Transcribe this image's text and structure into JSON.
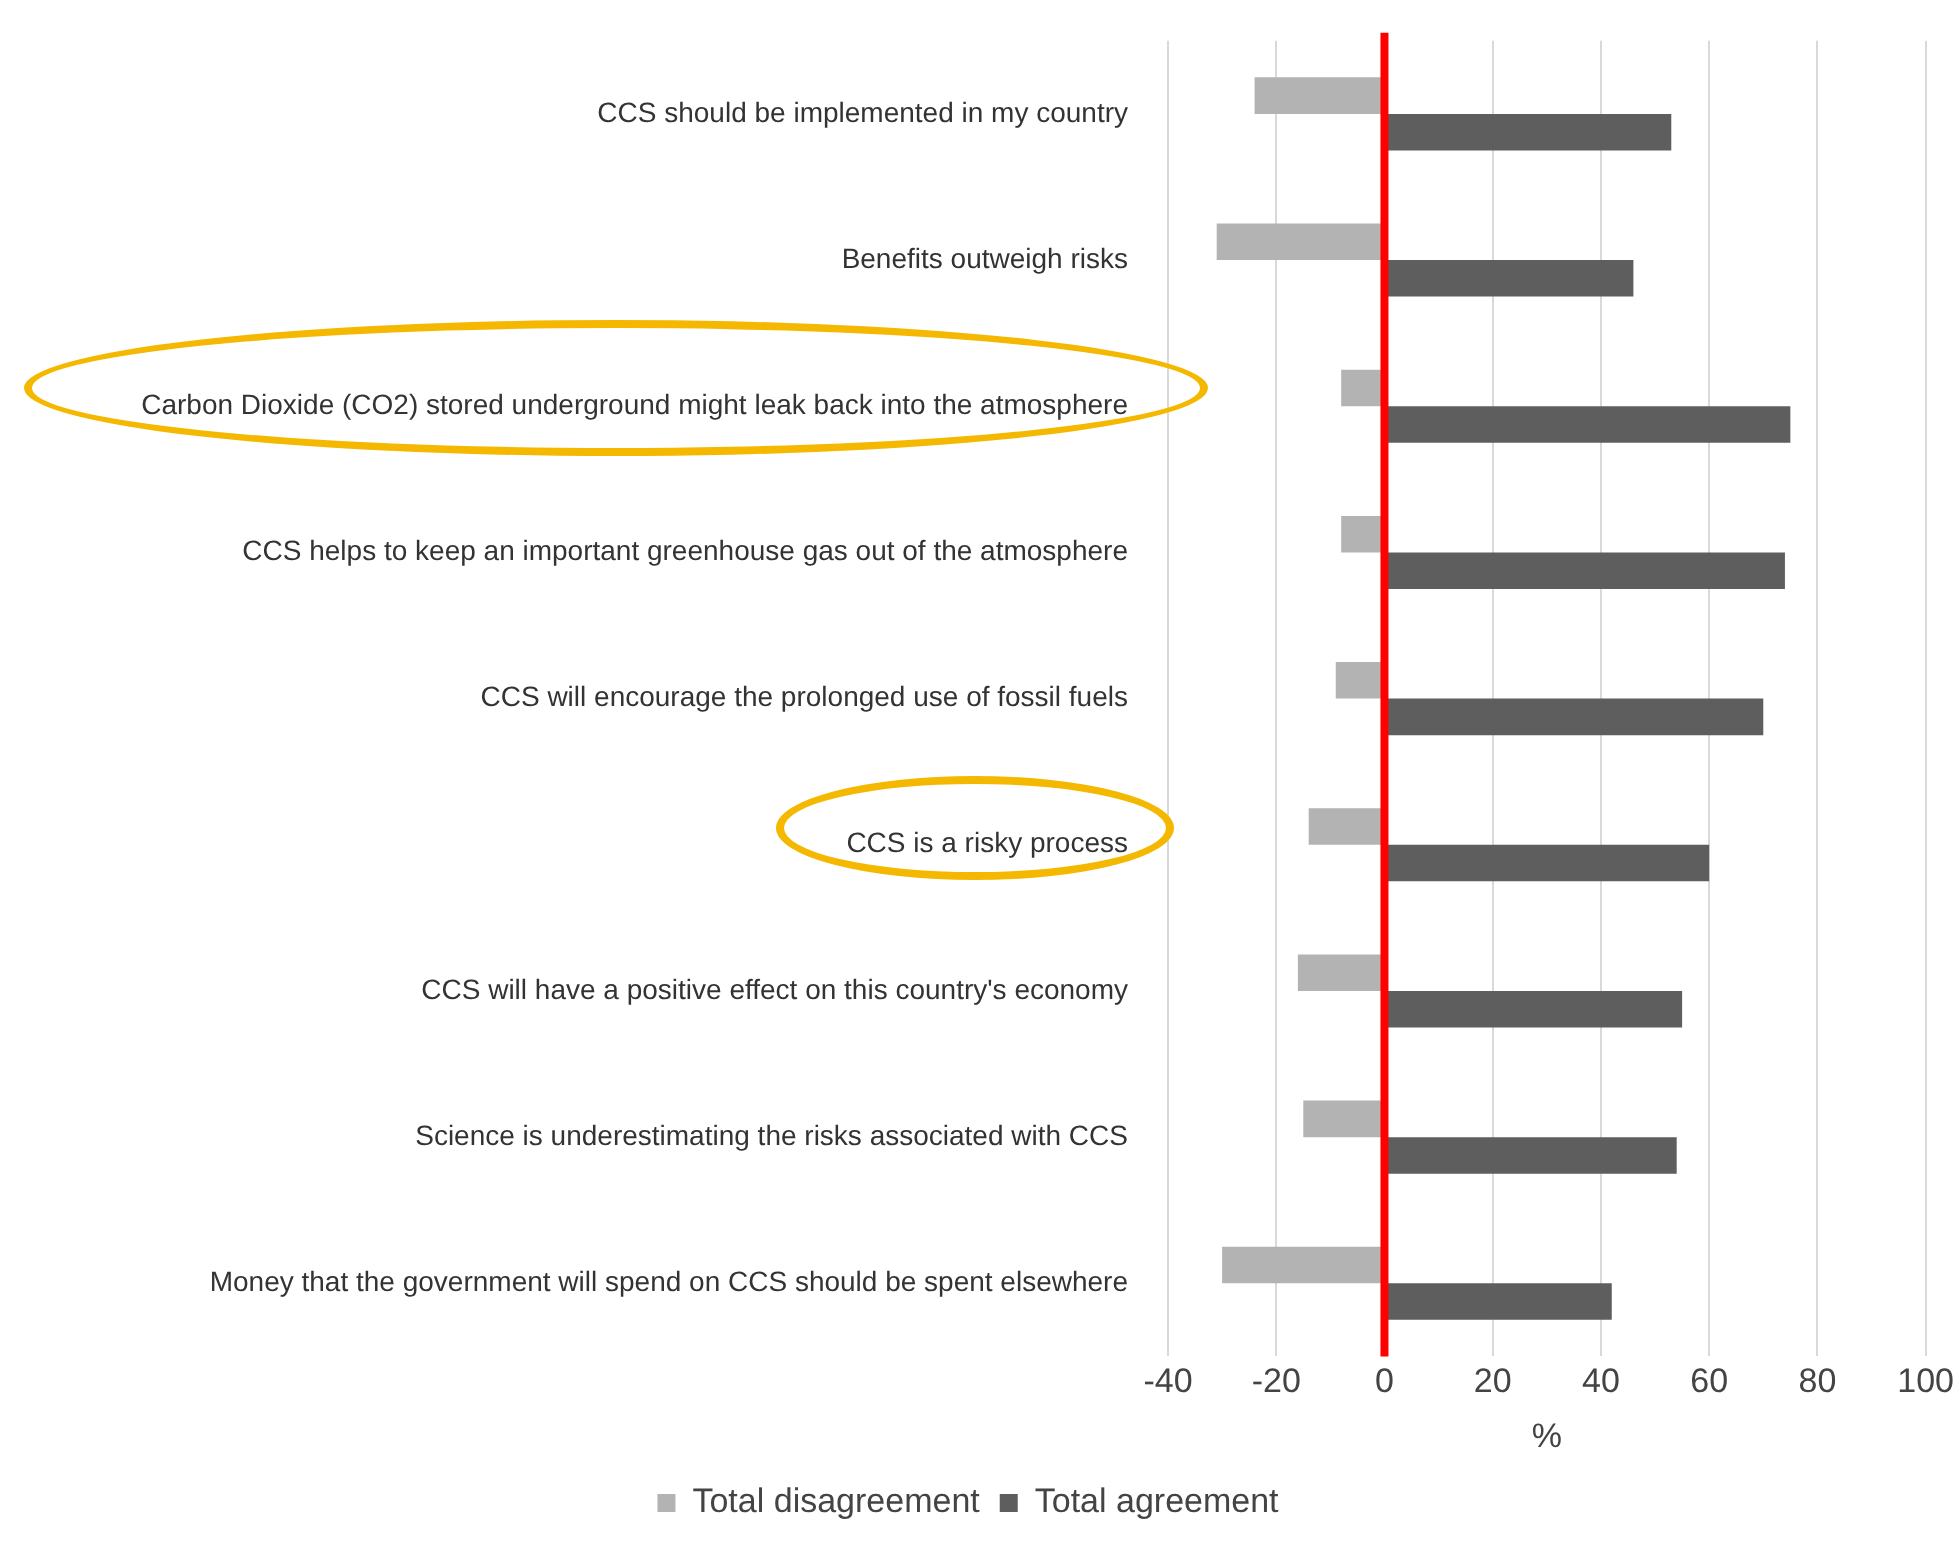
{
  "chart_data": {
    "type": "bar",
    "orientation": "horizontal",
    "xlabel": "%",
    "categories": [
      "CCS should be implemented in my country",
      "Benefits outweigh risks",
      "Carbon Dioxide (CO2) stored underground might leak back into the atmosphere",
      "CCS helps to keep an important greenhouse gas out of the atmosphere",
      "CCS will encourage the prolonged use of fossil fuels",
      "CCS is a risky process",
      "CCS will have a positive effect on this country's economy",
      "Science is underestimating the risks associated with CCS",
      "Money that the government will spend on CCS should be spent elsewhere"
    ],
    "series": [
      {
        "name": "Total disagreement",
        "color": "#b3b3b3",
        "values": [
          -24,
          -31,
          -8,
          -8,
          -9,
          -14,
          -16,
          -15,
          -30
        ]
      },
      {
        "name": "Total agreement",
        "color": "#5e5e5e",
        "values": [
          53,
          46,
          75,
          74,
          70,
          60,
          55,
          54,
          42
        ]
      }
    ],
    "xlim": [
      -40,
      100
    ],
    "xticks": [
      -40,
      -20,
      0,
      20,
      40,
      60,
      80,
      100
    ],
    "grid": "x",
    "legend": "bottom",
    "ref_lines": [
      {
        "axis": "x",
        "value": 0,
        "color": "#ff0000"
      }
    ]
  }
}
